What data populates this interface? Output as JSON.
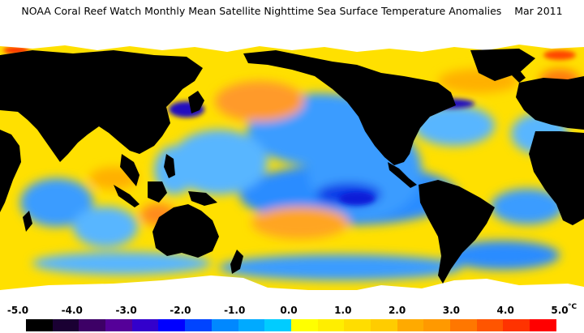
{
  "title": "NOAA Coral Reef Watch Monthly Mean Satellite Nighttime Sea Surface Temperature Anomalies",
  "date": "Mar 2011",
  "legend": {
    "unit": "°C",
    "ticks": [
      {
        "label": "-5.0",
        "value": -5.0
      },
      {
        "label": "-4.0",
        "value": -4.0
      },
      {
        "label": "-3.0",
        "value": -3.0
      },
      {
        "label": "-2.0",
        "value": -2.0
      },
      {
        "label": "-1.0",
        "value": -1.0
      },
      {
        "label": "0.0",
        "value": 0.0
      },
      {
        "label": "1.0",
        "value": 1.0
      },
      {
        "label": "2.0",
        "value": 2.0
      },
      {
        "label": "3.0",
        "value": 3.0
      },
      {
        "label": "4.0",
        "value": 4.0
      },
      {
        "label": "5.0",
        "value": 5.0
      }
    ],
    "range": [
      -5.0,
      5.0
    ],
    "colors": [
      "#000000",
      "#1a0033",
      "#3d0066",
      "#550099",
      "#3300cc",
      "#0000ff",
      "#0044ff",
      "#0088ff",
      "#00aaff",
      "#00ccff",
      "#ffff00",
      "#ffee00",
      "#ffdd00",
      "#ffcc00",
      "#ffaa00",
      "#ff9900",
      "#ff7700",
      "#ff5500",
      "#ff3300",
      "#ff0000"
    ]
  },
  "map": {
    "land_color": "#000000",
    "ice_color": "#ffffff",
    "ocean_neutral_color": "#ffe000",
    "cool_color": "#2a8cff",
    "strong_cool_color": "#0a1ed8",
    "warm_color": "#ff8a1c"
  }
}
